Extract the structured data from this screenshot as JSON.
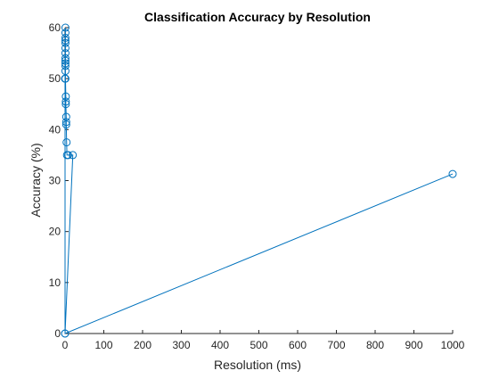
{
  "chart_data": {
    "type": "line",
    "title": "Classification Accuracy by Resolution",
    "xlabel": "Resolution (ms)",
    "ylabel": "Accuracy (%)",
    "xlim": [
      0,
      1000
    ],
    "ylim": [
      0,
      60
    ],
    "xticks": [
      0,
      100,
      200,
      300,
      400,
      500,
      600,
      700,
      800,
      900,
      1000
    ],
    "yticks": [
      0,
      10,
      20,
      30,
      40,
      50,
      60
    ],
    "grid": false,
    "legend": "none",
    "marker": "circle-open",
    "series_color": "#0072BD",
    "axis_color": "#262626",
    "x": [
      1000,
      0,
      0,
      1,
      1,
      1,
      1,
      1,
      1,
      1,
      1,
      1,
      1,
      1,
      1,
      1,
      2,
      2,
      2,
      3,
      3,
      3,
      4,
      5,
      8,
      20,
      0
    ],
    "y": [
      31.3,
      0,
      50,
      60,
      59,
      58,
      57.5,
      57,
      56,
      55,
      54,
      53.5,
      53,
      52.5,
      51.5,
      50,
      46.5,
      45.5,
      45,
      42.5,
      41,
      41.5,
      37.5,
      35,
      35,
      35,
      0
    ]
  }
}
